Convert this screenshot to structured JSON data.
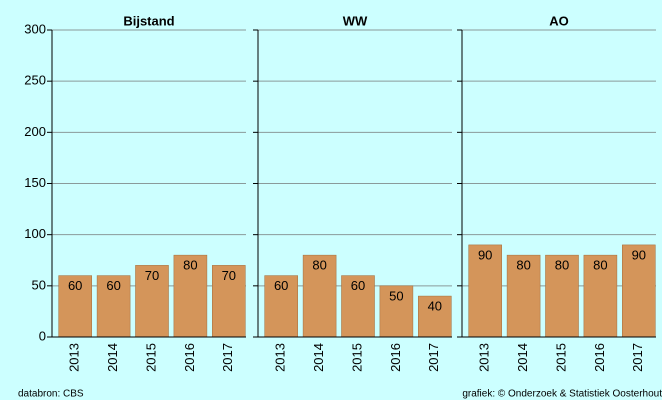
{
  "chart_data": [
    {
      "type": "bar",
      "title": "Bijstand",
      "categories": [
        "2013",
        "2014",
        "2015",
        "2016",
        "2017"
      ],
      "values": [
        60,
        60,
        70,
        80,
        70
      ],
      "color": "#d4955a",
      "ylim": [
        0,
        300
      ],
      "yticks": [
        0,
        50,
        100,
        150,
        200,
        250,
        300
      ],
      "grid": true
    },
    {
      "type": "bar",
      "title": "WW",
      "categories": [
        "2013",
        "2014",
        "2015",
        "2016",
        "2017"
      ],
      "values": [
        60,
        80,
        60,
        50,
        40
      ],
      "color": "#d4955a",
      "ylim": [
        0,
        300
      ],
      "yticks": [
        0,
        50,
        100,
        150,
        200,
        250,
        300
      ],
      "grid": true
    },
    {
      "type": "bar",
      "title": "AO",
      "categories": [
        "2013",
        "2014",
        "2015",
        "2016",
        "2017"
      ],
      "values": [
        90,
        80,
        80,
        80,
        90
      ],
      "color": "#d4955a",
      "ylim": [
        0,
        300
      ],
      "yticks": [
        0,
        50,
        100,
        150,
        200,
        250,
        300
      ],
      "grid": true
    }
  ],
  "footer": {
    "source": "databron: CBS",
    "credit": "grafiek: © Onderzoek & Statistiek Oosterhout"
  }
}
